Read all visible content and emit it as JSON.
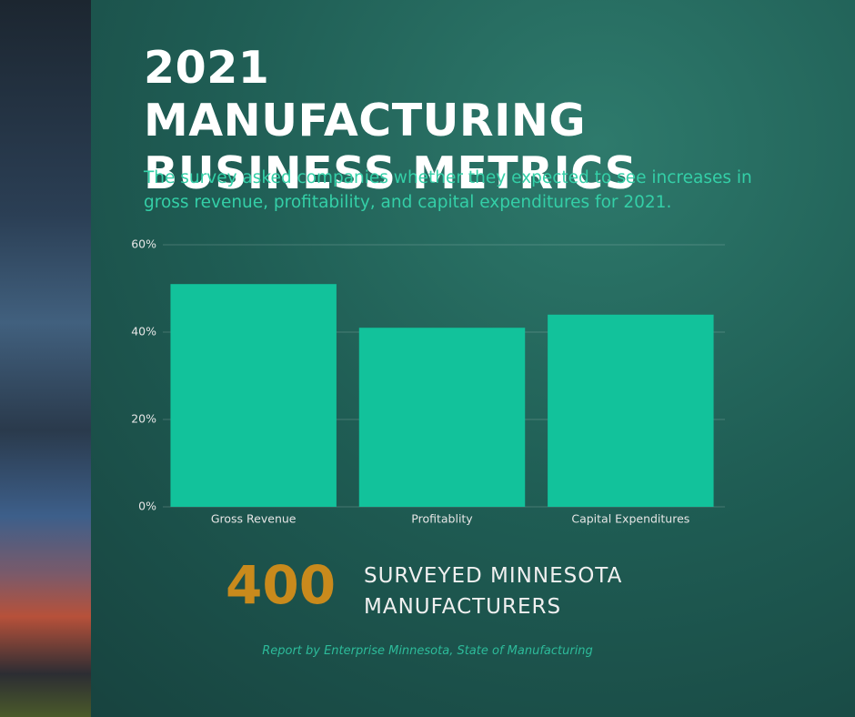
{
  "chart_data": {
    "type": "bar",
    "title": "2021 MANUFACTURING BUSINESS METRICS",
    "subtitle": "The survey asked companies whether they expected to see increases in gross revenue, profitability, and capital expenditures for 2021.",
    "categories": [
      "Gross Revenue",
      "Profitablity",
      "Capital Expenditures"
    ],
    "values": [
      51,
      41,
      44
    ],
    "color": "#12c29b",
    "ylim": [
      0,
      60
    ],
    "yticks": [
      {
        "value": 0,
        "label": "0%"
      },
      {
        "value": 20,
        "label": "20%"
      },
      {
        "value": 40,
        "label": "40%"
      },
      {
        "value": 60,
        "label": "60%"
      }
    ],
    "grid": true
  },
  "callout": {
    "number": 400,
    "label": "SURVEYED MINNESOTA MANUFACTURERS"
  },
  "source": "Report by Enterprise Minnesota, State of Manufacturing"
}
